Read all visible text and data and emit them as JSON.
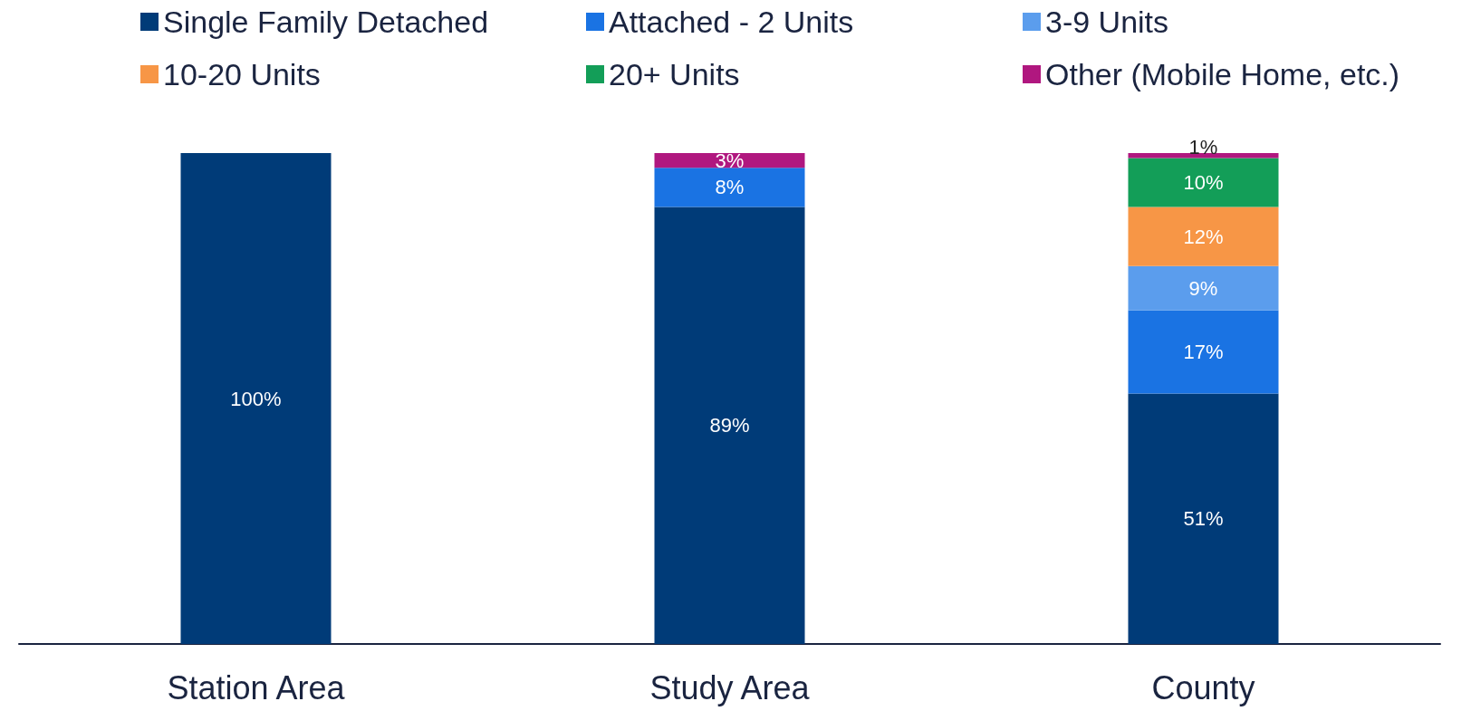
{
  "chart_data": {
    "type": "bar",
    "stacked": true,
    "categories": [
      "Station Area",
      "Study Area",
      "County"
    ],
    "ylim": [
      0,
      100
    ],
    "tick_labels": "x",
    "grid": false,
    "legend": "top",
    "series": [
      {
        "name": "Single Family Detached",
        "color": "#003b78",
        "values": [
          100,
          89,
          51
        ],
        "value_labels": [
          "100%",
          "89%",
          "51%"
        ]
      },
      {
        "name": "Attached - 2 Units",
        "color": "#1a73e3",
        "values": [
          0,
          8,
          17
        ],
        "value_labels": [
          null,
          "8%",
          "17%"
        ]
      },
      {
        "name": "3-9 Units",
        "color": "#5b9ded",
        "values": [
          0,
          0,
          9
        ],
        "value_labels": [
          null,
          null,
          "9%"
        ]
      },
      {
        "name": "10-20 Units",
        "color": "#f79646",
        "values": [
          0,
          0,
          12
        ],
        "value_labels": [
          null,
          null,
          "12%"
        ]
      },
      {
        "name": "20+ Units",
        "color": "#139e58",
        "values": [
          0,
          0,
          10
        ],
        "value_labels": [
          null,
          null,
          "10%"
        ]
      },
      {
        "name": "Other (Mobile Home, etc.)",
        "color": "#b0177f",
        "values": [
          0,
          3,
          1
        ],
        "value_labels": [
          null,
          "3%",
          "1%"
        ]
      }
    ]
  }
}
